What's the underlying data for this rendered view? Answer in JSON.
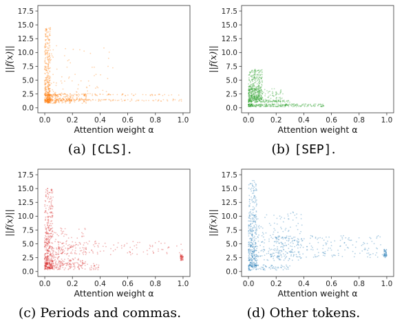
{
  "chart_data": [
    {
      "type": "scatter",
      "panel": "a",
      "caption_prefix": "(a) ",
      "caption_token": "[CLS]",
      "caption_suffix": ".",
      "xlabel": "Attention weight α",
      "ylabel": "||f(x)||",
      "xticks": [
        "0.0",
        "0.2",
        "0.4",
        "0.6",
        "0.8",
        "1.0"
      ],
      "yticks": [
        "0.0",
        "2.5",
        "5.0",
        "7.5",
        "10.0",
        "12.5",
        "15.0",
        "17.5"
      ],
      "xlim": [
        -0.05,
        1.05
      ],
      "ylim": [
        -0.9,
        18.5
      ],
      "color": "#ff7f0e",
      "clusters": [
        {
          "x": [
            0.0,
            0.04
          ],
          "y": [
            1.0,
            14.5
          ],
          "weight": 0.35
        },
        {
          "x": [
            0.02,
            0.3
          ],
          "y": [
            0.8,
            2.5
          ],
          "weight": 0.25
        },
        {
          "x": [
            0.0,
            1.0
          ],
          "y": [
            1.2,
            1.6
          ],
          "weight": 0.18
        },
        {
          "x": [
            0.0,
            1.0
          ],
          "y": [
            2.2,
            2.5
          ],
          "weight": 0.12
        },
        {
          "x": [
            0.0,
            0.5
          ],
          "y": [
            2.5,
            12.0
          ],
          "weight": 0.1
        }
      ]
    },
    {
      "type": "scatter",
      "panel": "b",
      "caption_prefix": "(b) ",
      "caption_token": "[SEP]",
      "caption_suffix": ".",
      "xlabel": "Attention weight α",
      "ylabel": "||f(x)||",
      "xticks": [
        "0.0",
        "0.2",
        "0.4",
        "0.6",
        "0.8",
        "1.0"
      ],
      "yticks": [
        "0.0",
        "2.5",
        "5.0",
        "7.5",
        "10.0",
        "12.5",
        "15.0",
        "17.5"
      ],
      "xlim": [
        -0.05,
        1.05
      ],
      "ylim": [
        -0.9,
        18.5
      ],
      "color": "#2ca02c",
      "clusters": [
        {
          "x": [
            0.0,
            0.1
          ],
          "y": [
            1.5,
            7.0
          ],
          "weight": 0.4
        },
        {
          "x": [
            0.0,
            0.55
          ],
          "y": [
            0.2,
            0.7
          ],
          "weight": 0.3
        },
        {
          "x": [
            0.0,
            0.3
          ],
          "y": [
            1.0,
            1.4
          ],
          "weight": 0.15
        },
        {
          "x": [
            0.0,
            0.25
          ],
          "y": [
            1.5,
            3.5
          ],
          "weight": 0.15
        }
      ]
    },
    {
      "type": "scatter",
      "panel": "c",
      "caption_prefix": "(c) ",
      "caption_token": "",
      "caption_suffix": "Periods and commas.",
      "xlabel": "Attention weight α",
      "ylabel": "||f(x)||",
      "xticks": [
        "0.0",
        "0.2",
        "0.4",
        "0.6",
        "0.8",
        "1.0"
      ],
      "yticks": [
        "0.0",
        "2.5",
        "5.0",
        "7.5",
        "10.0",
        "12.5",
        "15.0",
        "17.5"
      ],
      "xlim": [
        -0.05,
        1.05
      ],
      "ylim": [
        -0.9,
        18.5
      ],
      "color": "#d62728",
      "clusters": [
        {
          "x": [
            0.0,
            0.06
          ],
          "y": [
            0.5,
            15.0
          ],
          "weight": 0.35
        },
        {
          "x": [
            0.0,
            0.4
          ],
          "y": [
            0.3,
            1.5
          ],
          "weight": 0.2
        },
        {
          "x": [
            0.0,
            0.3
          ],
          "y": [
            1.5,
            8.0
          ],
          "weight": 0.25
        },
        {
          "x": [
            0.1,
            1.0
          ],
          "y": [
            3.0,
            5.5
          ],
          "weight": 0.15
        },
        {
          "x": [
            0.98,
            1.0
          ],
          "y": [
            2.0,
            3.0
          ],
          "weight": 0.05
        }
      ]
    },
    {
      "type": "scatter",
      "panel": "d",
      "caption_prefix": "(d) ",
      "caption_token": "",
      "caption_suffix": "Other tokens.",
      "xlabel": "Attention weight α",
      "ylabel": "||f(x)||",
      "xticks": [
        "0.0",
        "0.2",
        "0.4",
        "0.6",
        "0.8",
        "1.0"
      ],
      "yticks": [
        "0.0",
        "2.5",
        "5.0",
        "7.5",
        "10.0",
        "12.5",
        "15.0",
        "17.5"
      ],
      "xlim": [
        -0.05,
        1.05
      ],
      "ylim": [
        -0.9,
        18.5
      ],
      "color": "#1f77b4",
      "clusters": [
        {
          "x": [
            0.0,
            0.06
          ],
          "y": [
            1.0,
            16.5
          ],
          "weight": 0.3
        },
        {
          "x": [
            0.0,
            0.4
          ],
          "y": [
            2.0,
            11.0
          ],
          "weight": 0.3
        },
        {
          "x": [
            0.0,
            0.3
          ],
          "y": [
            0.2,
            1.2
          ],
          "weight": 0.1
        },
        {
          "x": [
            0.2,
            1.0
          ],
          "y": [
            2.5,
            6.5
          ],
          "weight": 0.25
        },
        {
          "x": [
            0.98,
            1.0
          ],
          "y": [
            2.5,
            4.0
          ],
          "weight": 0.05
        }
      ]
    }
  ]
}
